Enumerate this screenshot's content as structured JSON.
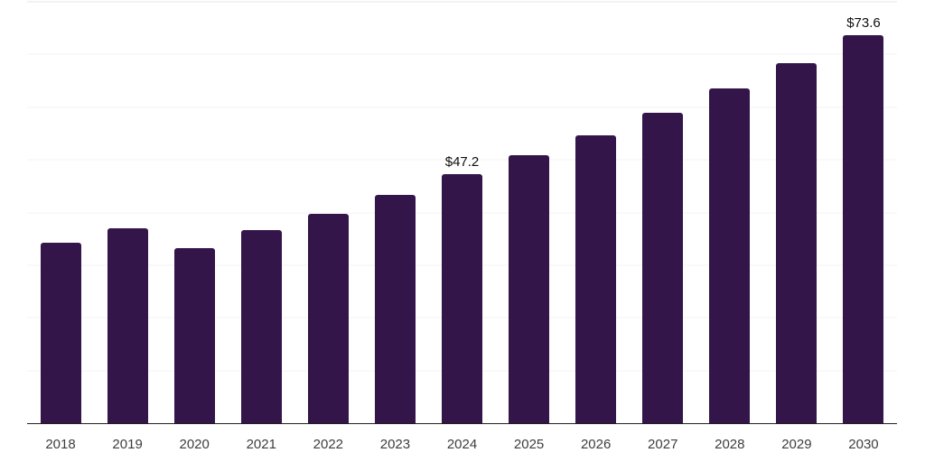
{
  "chart_data": {
    "type": "bar",
    "title": "",
    "xlabel": "",
    "ylabel": "",
    "categories": [
      "2018",
      "2019",
      "2020",
      "2021",
      "2022",
      "2023",
      "2024",
      "2025",
      "2026",
      "2027",
      "2028",
      "2029",
      "2030"
    ],
    "values": [
      34.2,
      37.0,
      33.3,
      36.6,
      39.7,
      43.3,
      47.2,
      50.8,
      54.7,
      58.9,
      63.6,
      68.4,
      73.6
    ],
    "point_labels": [
      null,
      null,
      null,
      null,
      null,
      null,
      "$47.2",
      null,
      null,
      null,
      null,
      null,
      "$73.6"
    ],
    "ylim": [
      0,
      80
    ],
    "gridline_step": 10,
    "grid": "horizontal-only",
    "legend": "none",
    "y_axis_tick_labels_visible": false,
    "colors": {
      "bar": "#33154a",
      "value_label": "#0e0e0e",
      "tick_label": "#3d3d3d",
      "axis_line": "#1f1f1f",
      "gridline": "#f3f3f3",
      "top_gridline": "#e5e5e5",
      "background": "#ffffff"
    }
  }
}
